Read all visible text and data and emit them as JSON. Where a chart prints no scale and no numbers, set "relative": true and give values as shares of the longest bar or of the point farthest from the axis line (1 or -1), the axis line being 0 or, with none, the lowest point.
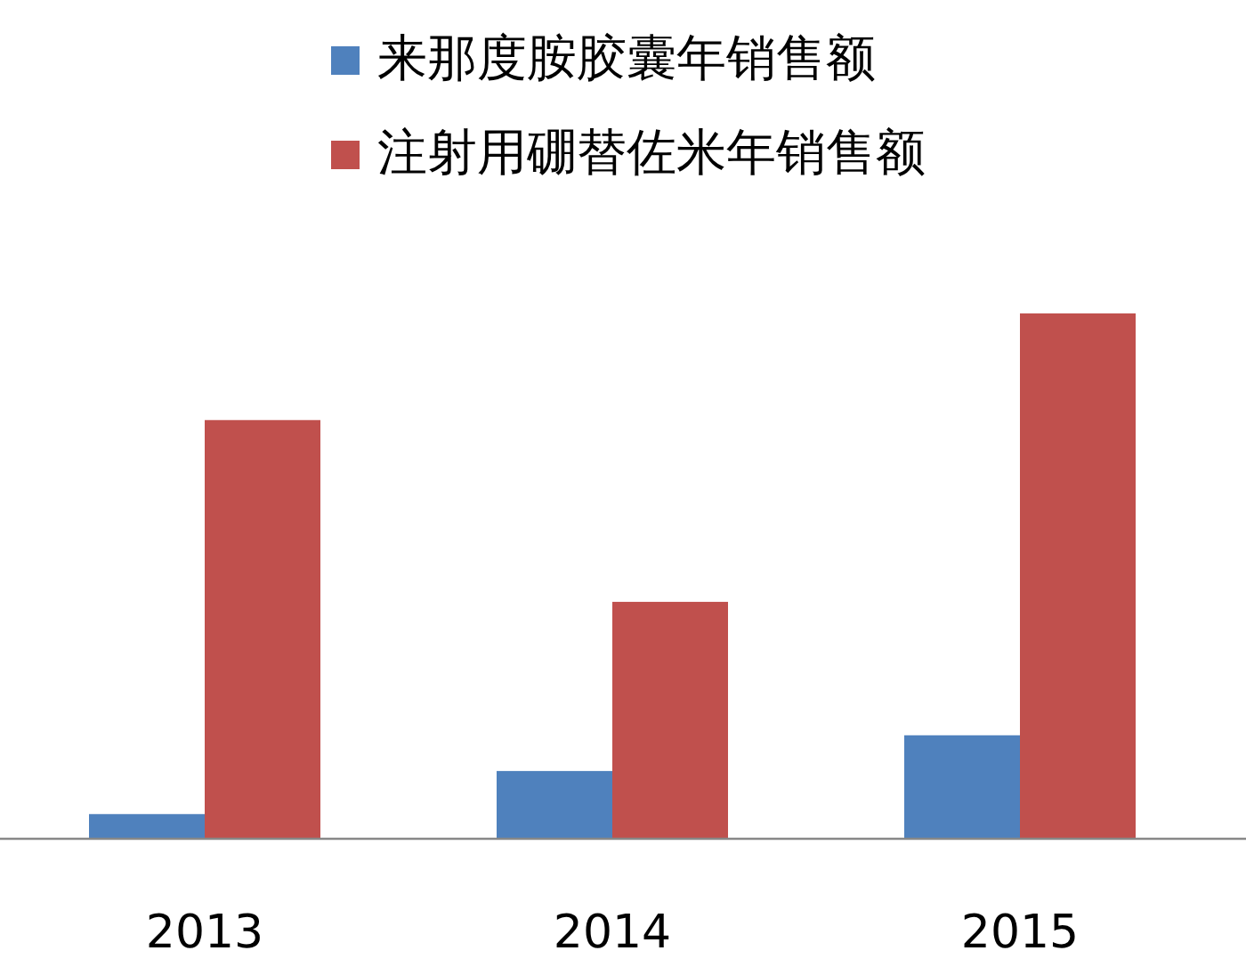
{
  "chart_data": {
    "type": "bar",
    "relative": true,
    "legend": "top",
    "categories": [
      "2013",
      "2014",
      "2015"
    ],
    "series": [
      {
        "name": "来那度胺胶囊年销售额",
        "color": "#4f81bd",
        "values": [
          0.047,
          0.129,
          0.197
        ]
      },
      {
        "name": "注射用硼替佐米年销售额",
        "color": "#c0504d",
        "values": [
          0.797,
          0.451,
          1
        ]
      }
    ]
  }
}
